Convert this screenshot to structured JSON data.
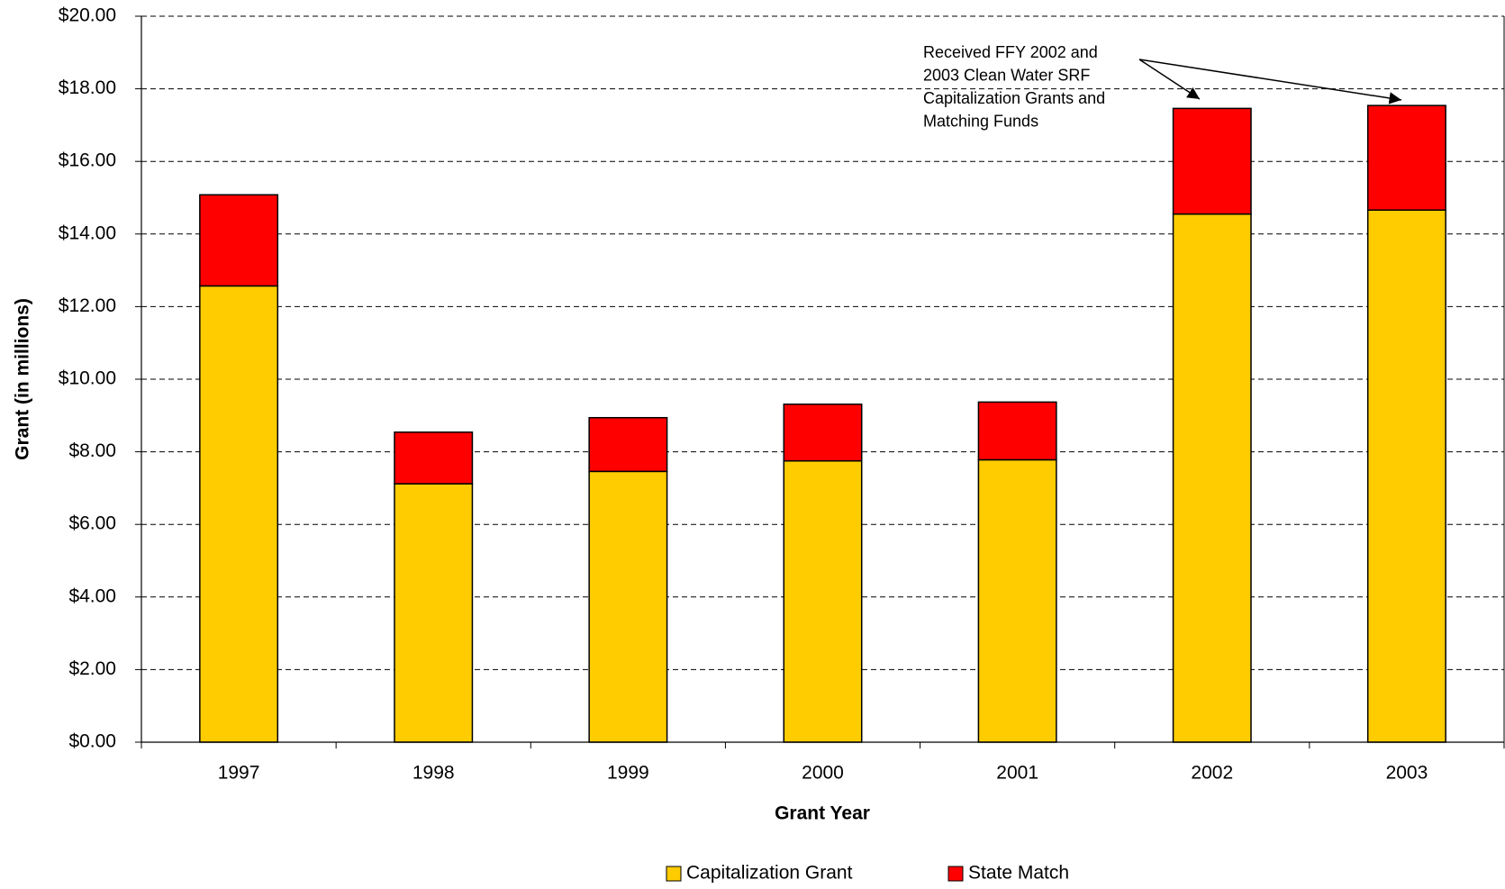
{
  "chart_data": {
    "type": "stacked_bar",
    "categories": [
      "1997",
      "1998",
      "1999",
      "2000",
      "2001",
      "2002",
      "2003"
    ],
    "series": [
      {
        "name": "Capitalization Grant",
        "color": "#ffcc00",
        "values": [
          12.57,
          7.12,
          7.46,
          7.75,
          7.78,
          14.55,
          14.66
        ]
      },
      {
        "name": "State Match",
        "color": "#ff0000",
        "values": [
          2.51,
          1.42,
          1.48,
          1.56,
          1.59,
          2.91,
          2.88
        ]
      }
    ],
    "x_label": "Grant Year",
    "y_label": "Grant (in millions)",
    "ylim": [
      0,
      20
    ],
    "yticks": [
      {
        "value": 0,
        "label": "$0.00"
      },
      {
        "value": 2,
        "label": "$2.00"
      },
      {
        "value": 4,
        "label": "$4.00"
      },
      {
        "value": 6,
        "label": "$6.00"
      },
      {
        "value": 8,
        "label": "$8.00"
      },
      {
        "value": 10,
        "label": "$10.00"
      },
      {
        "value": 12,
        "label": "$12.00"
      },
      {
        "value": 14,
        "label": "$14.00"
      },
      {
        "value": 16,
        "label": "$16.00"
      },
      {
        "value": 18,
        "label": "$18.00"
      },
      {
        "value": 20,
        "label": "$20.00"
      }
    ],
    "grid": true,
    "legend": "bottom",
    "annotation": [
      "Received FFY 2002 and",
      "2003 Clean Water SRF",
      "Capitalization Grants and",
      "Matching Funds"
    ]
  }
}
